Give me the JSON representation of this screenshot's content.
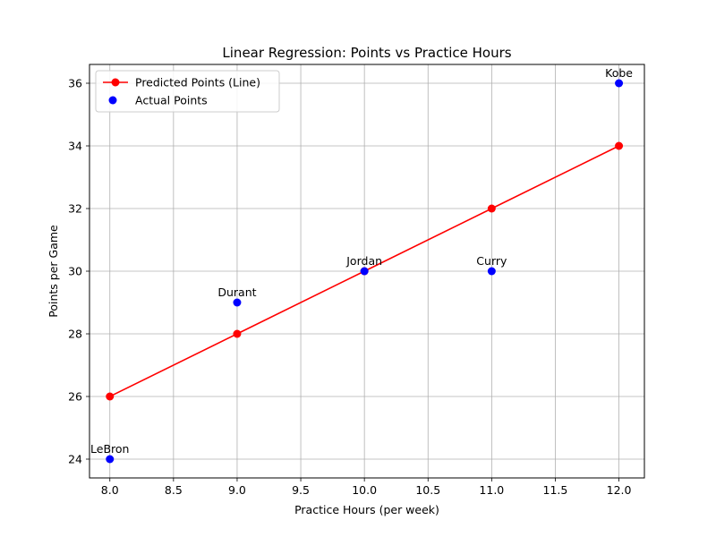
{
  "chart_data": {
    "type": "line",
    "title": "Linear Regression: Points vs Practice Hours",
    "xlabel": "Practice Hours (per week)",
    "ylabel": "Points per Game",
    "xlim": [
      7.84,
      12.2
    ],
    "ylim": [
      23.4,
      36.6
    ],
    "xticks": [
      "8.0",
      "8.5",
      "9.0",
      "9.5",
      "10.0",
      "10.5",
      "11.0",
      "11.5",
      "12.0"
    ],
    "yticks": [
      "24",
      "26",
      "28",
      "30",
      "32",
      "34",
      "36"
    ],
    "grid": true,
    "legend_position": "top-left",
    "series": [
      {
        "name": "Predicted Points (Line)",
        "kind": "line",
        "color": "#ff0000",
        "x": [
          8,
          9,
          10,
          11,
          12
        ],
        "y": [
          26,
          28,
          30,
          32,
          34
        ]
      },
      {
        "name": "Actual Points",
        "kind": "scatter",
        "color": "#0000ff",
        "x": [
          8,
          9,
          10,
          11,
          12
        ],
        "y": [
          24,
          29,
          30,
          30,
          36
        ],
        "labels": [
          "LeBron",
          "Durant",
          "Jordan",
          "Curry",
          "Kobe"
        ]
      }
    ]
  }
}
